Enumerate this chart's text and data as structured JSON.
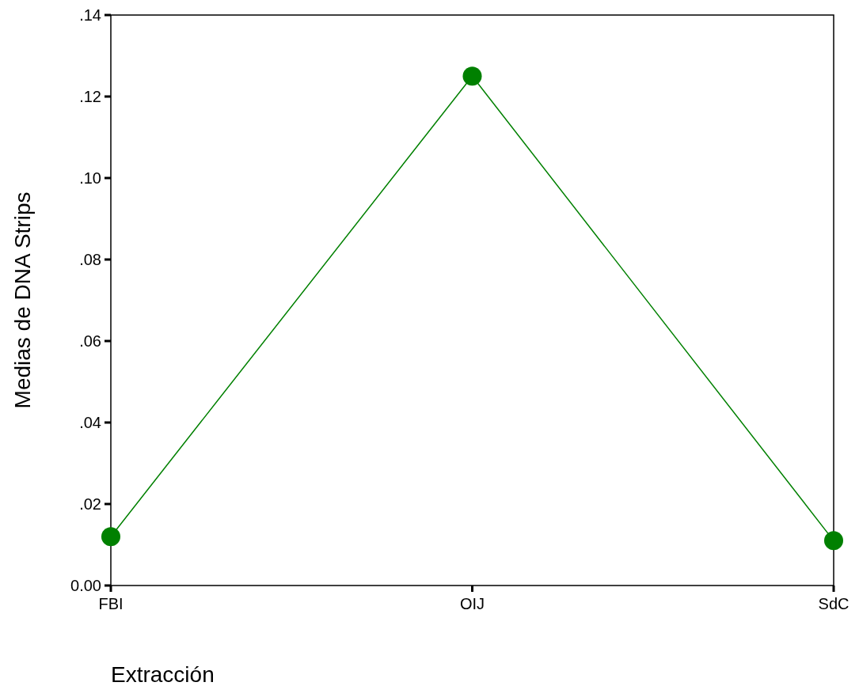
{
  "chart_data": {
    "type": "line",
    "xlabel": "Extracción",
    "ylabel": "Medias de DNA Strips",
    "categories": [
      "FBI",
      "OIJ",
      "SdC"
    ],
    "series": [
      {
        "color": "#008000",
        "values": [
          0.012,
          0.125,
          0.011
        ]
      }
    ],
    "ylim": [
      0,
      0.14
    ],
    "yticks": [
      {
        "value": 0,
        "label": "0.00"
      },
      {
        "value": 0.02,
        "label": ".02"
      },
      {
        "value": 0.04,
        "label": ".04"
      },
      {
        "value": 0.06,
        "label": ".06"
      },
      {
        "value": 0.08,
        "label": ".08"
      },
      {
        "value": 0.1,
        "label": ".10"
      },
      {
        "value": 0.12,
        "label": ".12"
      },
      {
        "value": 0.14,
        "label": ".14"
      }
    ],
    "marker": "circle",
    "line_style": "solid",
    "grid": false
  }
}
